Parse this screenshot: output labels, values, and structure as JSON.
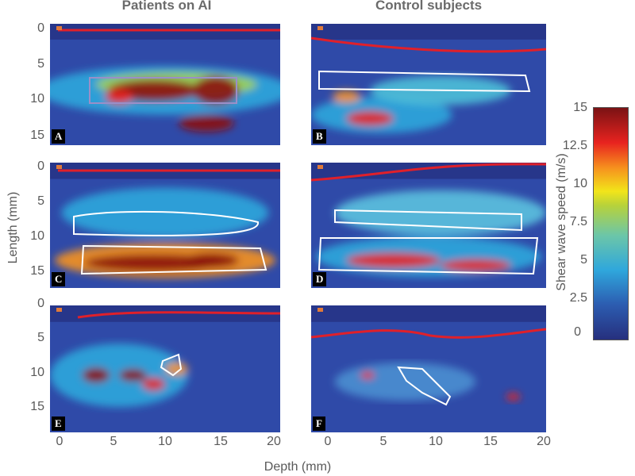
{
  "chart_data": {
    "type": "heatmap",
    "column_titles": [
      "Patients on AI",
      "Control subjects"
    ],
    "ylabel": "Length (mm)",
    "xlabel": "Depth (mm)",
    "y_ticks": [
      "0",
      "5",
      "10",
      "15"
    ],
    "x_ticks": [
      "0",
      "5",
      "10",
      "15",
      "20"
    ],
    "ylim": [
      0,
      16
    ],
    "xlim": [
      0,
      20
    ],
    "panels": [
      {
        "label": "A",
        "group": "Patients on AI"
      },
      {
        "label": "B",
        "group": "Control subjects"
      },
      {
        "label": "C",
        "group": "Patients on AI"
      },
      {
        "label": "D",
        "group": "Control subjects"
      },
      {
        "label": "E",
        "group": "Patients on AI"
      },
      {
        "label": "F",
        "group": "Control subjects"
      }
    ],
    "colorbar": {
      "label": "Shear wave speed (m/s)",
      "ticks": [
        "15",
        "12.5",
        "10",
        "7.5",
        "5",
        "2.5",
        "0"
      ],
      "range": [
        0,
        15
      ],
      "colors": [
        "#26307e",
        "#2fa7dc",
        "#f2e51a",
        "#e8231f",
        "#7a1214"
      ]
    }
  }
}
